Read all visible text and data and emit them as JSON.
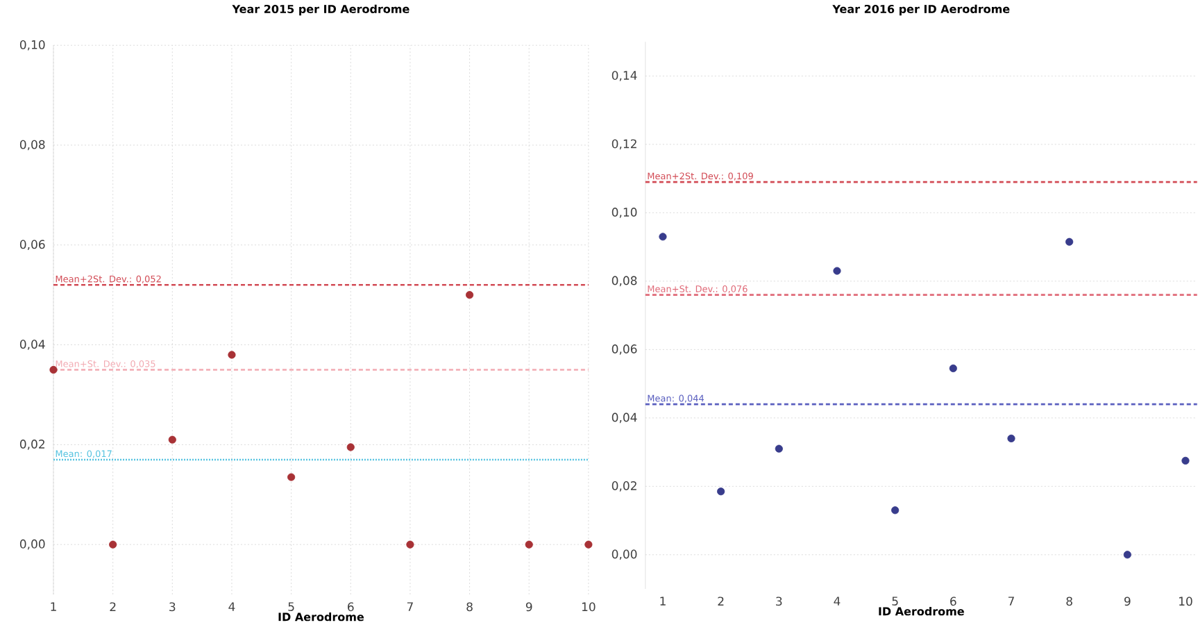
{
  "chart_data": [
    {
      "type": "scatter",
      "title": "Year 2015 per ID Aerodrome",
      "xlabel": "ID Aerodrome",
      "x": [
        1,
        2,
        3,
        4,
        5,
        6,
        7,
        8,
        9,
        10
      ],
      "series": [
        {
          "color": "#a83236",
          "values": [
            0.035,
            0,
            0.021,
            0.038,
            0.0135,
            0.0195,
            0,
            0.05,
            0,
            0
          ]
        }
      ],
      "xlim": [
        1,
        10
      ],
      "xticks": [
        1,
        2,
        3,
        4,
        5,
        6,
        7,
        8,
        9,
        10
      ],
      "ylim": [
        -0.01,
        0.1
      ],
      "yticks": [
        {
          "value": 0,
          "label": "0,00"
        },
        {
          "value": 0.02,
          "label": "0,02"
        },
        {
          "value": 0.04,
          "label": "0,04"
        },
        {
          "value": 0.06,
          "label": "0,06"
        },
        {
          "value": 0.08,
          "label": "0,08"
        },
        {
          "value": 0.1,
          "label": "0,10"
        }
      ],
      "grid": true,
      "marker": "circle",
      "ref_lines": [
        {
          "axis": "y",
          "value": 0.052,
          "label": "Mean+2St. Dev.: 0,052",
          "color": "#d24b55",
          "line_style": "dashed"
        },
        {
          "axis": "y",
          "value": 0.035,
          "label": "Mean+St. Dev.: 0,035",
          "color": "#f2aab2",
          "line_style": "dashed"
        },
        {
          "axis": "y",
          "value": 0.017,
          "label": "Mean: 0,017",
          "color": "#55c3e0",
          "line_style": "dotted"
        }
      ]
    },
    {
      "type": "scatter",
      "title": "Year 2016 per ID Aerodrome",
      "xlabel": "ID Aerodrome",
      "x": [
        1,
        2,
        3,
        4,
        5,
        6,
        7,
        8,
        9,
        10
      ],
      "series": [
        {
          "color": "#383c8c",
          "values": [
            0.093,
            0.0185,
            0.031,
            0.083,
            0.013,
            0.0545,
            0.034,
            0.0915,
            0,
            0.0275
          ]
        }
      ],
      "xlim": [
        0.7,
        10.2
      ],
      "xticks": [
        1,
        2,
        3,
        4,
        5,
        6,
        7,
        8,
        9,
        10
      ],
      "ylim": [
        -0.01,
        0.15
      ],
      "yticks": [
        {
          "value": 0,
          "label": "0,00"
        },
        {
          "value": 0.02,
          "label": "0,02"
        },
        {
          "value": 0.04,
          "label": "0,04"
        },
        {
          "value": 0.06,
          "label": "0,06"
        },
        {
          "value": 0.08,
          "label": "0,08"
        },
        {
          "value": 0.1,
          "label": "0,10"
        },
        {
          "value": 0.12,
          "label": "0,12"
        },
        {
          "value": 0.14,
          "label": "0,14"
        }
      ],
      "grid": "y",
      "marker": "circle",
      "ref_lines": [
        {
          "axis": "y",
          "value": 0.109,
          "label": "Mean+2St. Dev.: 0,109",
          "color": "#d24b55",
          "line_style": "dashed"
        },
        {
          "axis": "y",
          "value": 0.076,
          "label": "Mean+St. Dev.: 0,076",
          "color": "#e06a78",
          "line_style": "dashed"
        },
        {
          "axis": "y",
          "value": 0.044,
          "label": "Mean: 0,044",
          "color": "#5a5fbf",
          "line_style": "dashed"
        }
      ]
    }
  ]
}
